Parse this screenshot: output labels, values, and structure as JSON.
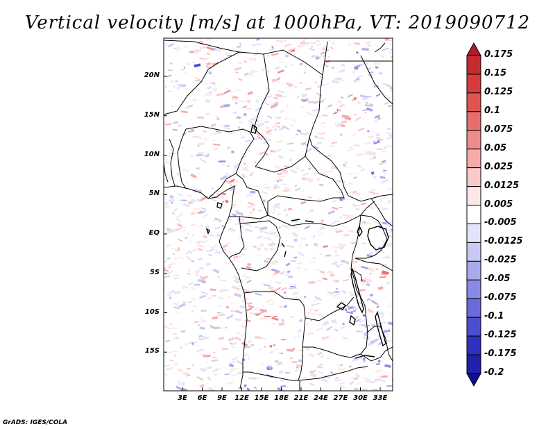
{
  "title": "Vertical velocity [m/s] at 1000hPa, VT: 2019090712",
  "credit": "GrADS: IGES/COLA",
  "map": {
    "variable": "Vertical velocity",
    "units": "m/s",
    "level": "1000hPa",
    "valid_time": "2019090712",
    "lat_labels": [
      "20N",
      "15N",
      "10N",
      "5N",
      "EQ",
      "5S",
      "10S",
      "15S"
    ],
    "lon_labels": [
      "3E",
      "6E",
      "9E",
      "12E",
      "15E",
      "18E",
      "21E",
      "24E",
      "27E",
      "30E",
      "33E"
    ]
  },
  "colorbar": {
    "labels": [
      "0.175",
      "0.15",
      "0.125",
      "0.1",
      "0.075",
      "0.05",
      "0.025",
      "0.0125",
      "0.005",
      "-0.005",
      "-0.0125",
      "-0.025",
      "-0.05",
      "-0.075",
      "-0.1",
      "-0.125",
      "-0.175",
      "-0.2"
    ],
    "colors": [
      "#b2182b",
      "#c62c2e",
      "#d63b3b",
      "#e05454",
      "#e66e6e",
      "#ee8c8c",
      "#f5abab",
      "#fac9c9",
      "#fde6e6",
      "#ffffff",
      "#e3e3fb",
      "#c9c9f5",
      "#a9a9ee",
      "#8a8ae6",
      "#6a6adc",
      "#4d4dd0",
      "#3030c0",
      "#2020aa",
      "#10108f"
    ]
  }
}
